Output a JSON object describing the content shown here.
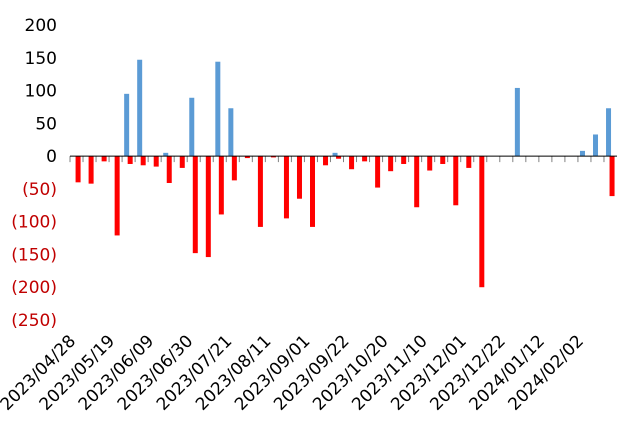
{
  "chart_data": {
    "type": "bar",
    "title": "",
    "xlabel": "",
    "ylabel": "",
    "ylim": [
      -250,
      200
    ],
    "grid": false,
    "legend": "none",
    "y_ticks": [
      200,
      150,
      100,
      50,
      0,
      -50,
      -100,
      -150,
      -200,
      -250
    ],
    "y_tick_labels": [
      "200",
      "150",
      "100",
      "50",
      "0",
      "(50)",
      "(100)",
      "(150)",
      "(200)",
      "(250)"
    ],
    "x_tick_labels": [
      "2023/04/28",
      "2023/05/19",
      "2023/06/09",
      "2023/06/30",
      "2023/07/21",
      "2023/08/11",
      "2023/09/01",
      "2023/09/22",
      "2023/10/20",
      "2023/11/10",
      "2023/12/01",
      "2023/12/22",
      "2024/01/12",
      "2024/02/02"
    ],
    "categories": [
      "2023/04/28",
      "2023/05/05",
      "2023/05/12",
      "2023/05/19",
      "2023/05/26",
      "2023/06/02",
      "2023/06/09",
      "2023/06/16",
      "2023/06/23",
      "2023/06/30",
      "2023/07/07",
      "2023/07/14",
      "2023/07/21",
      "2023/07/28",
      "2023/08/04",
      "2023/08/11",
      "2023/08/18",
      "2023/08/25",
      "2023/09/01",
      "2023/09/08",
      "2023/09/15",
      "2023/09/22",
      "2023/09/29",
      "2023/10/06",
      "2023/10/13",
      "2023/10/20",
      "2023/10/27",
      "2023/11/03",
      "2023/11/10",
      "2023/11/17",
      "2023/11/24",
      "2023/12/01",
      "2023/12/08",
      "2023/12/15",
      "2023/12/22",
      "2023/12/29",
      "2024/01/05",
      "2024/01/12",
      "2024/01/19",
      "2024/01/26",
      "2024/02/02",
      "2024/02/09"
    ],
    "series": [
      {
        "values_positive": [
          0,
          0,
          0,
          0,
          95,
          147,
          0,
          5,
          0,
          89,
          0,
          144,
          73,
          0,
          0,
          0,
          0,
          0,
          0,
          0,
          5,
          0,
          0,
          0,
          0,
          0,
          0,
          0,
          0,
          0,
          0,
          0,
          0,
          0,
          104,
          0,
          0,
          0,
          0,
          8,
          33,
          73
        ]
      },
      {
        "values_negative": [
          -40,
          -42,
          -8,
          -121,
          -12,
          -14,
          -16,
          -41,
          -18,
          -148,
          -154,
          -89,
          -37,
          -3,
          -108,
          -2,
          -95,
          -65,
          -108,
          -14,
          -4,
          -20,
          -8,
          -48,
          -23,
          -12,
          -78,
          -22,
          -12,
          -75,
          -18,
          -200,
          0,
          0,
          0,
          0,
          0,
          0,
          0,
          0,
          0,
          -61
        ]
      }
    ],
    "colors": {
      "positive_bar": "#5b9bd5",
      "negative_bar": "#ff0000",
      "positive_tick_label": "#000000",
      "negative_tick_label": "#c00000",
      "axis": "#000000",
      "tick_mark": "#808080"
    }
  }
}
